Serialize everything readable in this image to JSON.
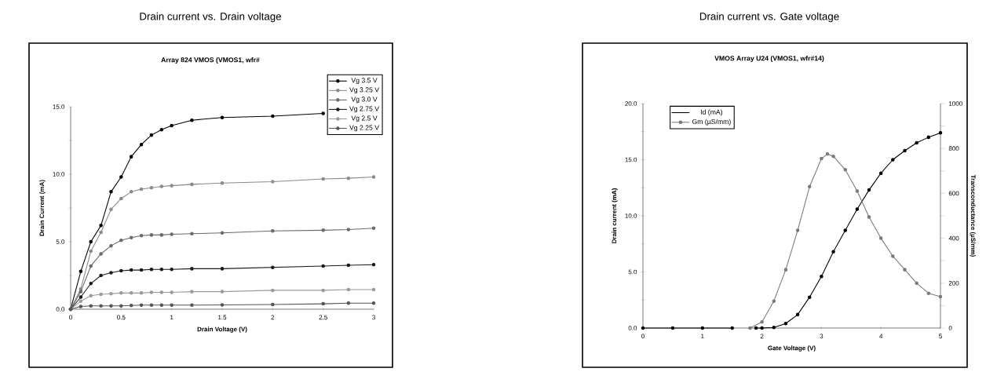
{
  "chart_data": [
    {
      "type": "line",
      "title": "Drain current vs. Drain voltage",
      "subtitle": "Array 824 VMOS (VMOS1, wfr#",
      "xlabel": "Drain Voltage (V)",
      "ylabel": "Drain Current (mA)",
      "xlim": [
        0,
        3
      ],
      "ylim": [
        0,
        15
      ],
      "xticks": [
        0,
        0.5,
        1,
        1.5,
        2,
        2.5,
        3
      ],
      "yticks": [
        {
          "value": 0,
          "label": "0.0"
        },
        {
          "value": 2.5,
          "label": null
        },
        {
          "value": 5,
          "label": "5.0"
        },
        {
          "value": 7.5,
          "label": null
        },
        {
          "value": 10,
          "label": "10.0"
        },
        {
          "value": 12.5,
          "label": null
        },
        {
          "value": 15,
          "label": "15.0"
        }
      ],
      "x": [
        0,
        0.1,
        0.2,
        0.3,
        0.4,
        0.5,
        0.6,
        0.7,
        0.8,
        0.9,
        1.0,
        1.2,
        1.5,
        2.0,
        2.5,
        2.75,
        3.0
      ],
      "series": [
        {
          "name": "Vg 3.5 V",
          "color": "#000000",
          "values": [
            0,
            2.8,
            5.0,
            6.2,
            8.7,
            9.8,
            11.3,
            12.2,
            12.9,
            13.3,
            13.6,
            14.0,
            14.2,
            14.3,
            14.5,
            null,
            null
          ]
        },
        {
          "name": "Vg 3.25 V",
          "color": "#8a8a8a",
          "values": [
            0,
            1.5,
            4.3,
            5.7,
            7.4,
            8.2,
            8.7,
            8.9,
            9.0,
            9.1,
            9.15,
            9.25,
            9.35,
            9.45,
            9.65,
            9.7,
            9.8
          ]
        },
        {
          "name": "Vg 3.0 V",
          "color": "#6a6a6a",
          "values": [
            0,
            1.3,
            3.2,
            4.1,
            4.7,
            5.1,
            5.3,
            5.45,
            5.5,
            5.5,
            5.55,
            5.6,
            5.65,
            5.8,
            5.85,
            5.9,
            6.0
          ]
        },
        {
          "name": "Vg 2.75 V",
          "color": "#1a1a1a",
          "values": [
            0,
            0.9,
            1.9,
            2.5,
            2.7,
            2.85,
            2.9,
            2.9,
            2.95,
            2.95,
            2.95,
            3.0,
            3.0,
            3.1,
            3.2,
            3.25,
            3.3
          ]
        },
        {
          "name": "Vg 2.5 V",
          "color": "#9a9a9a",
          "values": [
            0,
            0.6,
            1.0,
            1.1,
            1.15,
            1.2,
            1.2,
            1.2,
            1.25,
            1.25,
            1.25,
            1.3,
            1.3,
            1.4,
            1.4,
            1.45,
            1.45
          ]
        },
        {
          "name": "Vg 2.25 V",
          "color": "#555555",
          "values": [
            0,
            0.2,
            0.25,
            0.25,
            0.25,
            0.25,
            0.28,
            0.3,
            0.3,
            0.3,
            0.3,
            0.3,
            0.32,
            0.35,
            0.4,
            0.45,
            0.45
          ]
        }
      ],
      "marker": "circle",
      "legend": "top right"
    },
    {
      "type": "line",
      "title": "Drain current vs. Gate voltage",
      "subtitle": "VMOS Array U24 (VMOS1, wfr#14)",
      "xlabel": "Gate Voltage (V)",
      "ylabel": "Drain current (mA)",
      "y2label": "Transconductance (µS/mm)",
      "xlim": [
        0,
        5
      ],
      "ylim": [
        0,
        20
      ],
      "y2lim": [
        0,
        1000
      ],
      "xticks": [
        0,
        1,
        2,
        3,
        4,
        5
      ],
      "yticks": [
        {
          "value": 0,
          "label": "0.0"
        },
        {
          "value": 2.5,
          "label": null
        },
        {
          "value": 5,
          "label": "5.0"
        },
        {
          "value": 7.5,
          "label": null
        },
        {
          "value": 10,
          "label": "10.0"
        },
        {
          "value": 12.5,
          "label": null
        },
        {
          "value": 15,
          "label": "15.0"
        },
        {
          "value": 17.5,
          "label": null
        },
        {
          "value": 20,
          "label": "20.0"
        }
      ],
      "y2ticks": [
        0,
        {
          "value": 100,
          "label": null
        },
        200,
        {
          "value": 300,
          "label": null
        },
        400,
        {
          "value": 500,
          "label": null
        },
        600,
        {
          "value": 700,
          "label": null
        },
        800,
        {
          "value": 900,
          "label": null
        },
        1000
      ],
      "series": [
        {
          "name": "Id (mA)",
          "color": "#000000",
          "x": [
            0,
            0.5,
            1.0,
            1.5,
            1.7,
            1.9,
            2.0,
            2.2,
            2.4,
            2.6,
            2.8,
            3.0,
            3.2,
            3.4,
            3.6,
            3.8,
            4.0,
            4.2,
            4.4,
            4.6,
            4.8,
            5.0
          ],
          "values": [
            0,
            0,
            0,
            0,
            null,
            0,
            0,
            0.05,
            0.4,
            1.2,
            2.75,
            4.6,
            6.8,
            8.7,
            10.6,
            12.3,
            13.8,
            15.0,
            15.8,
            16.5,
            17.0,
            17.4
          ]
        },
        {
          "name": "Gm (µS/mm)",
          "color": "#7a7a7a",
          "axis": "y2",
          "x": [
            1.8,
            2.0,
            2.2,
            2.4,
            2.6,
            2.8,
            3.0,
            3.1,
            3.2,
            3.4,
            3.6,
            3.8,
            4.0,
            4.2,
            4.4,
            4.6,
            4.8,
            5.0
          ],
          "values": [
            0,
            27,
            120,
            260,
            435,
            630,
            755,
            775,
            765,
            705,
            610,
            495,
            400,
            320,
            260,
            200,
            155,
            140
          ]
        }
      ],
      "marker": "circle",
      "legend": "top left"
    }
  ]
}
